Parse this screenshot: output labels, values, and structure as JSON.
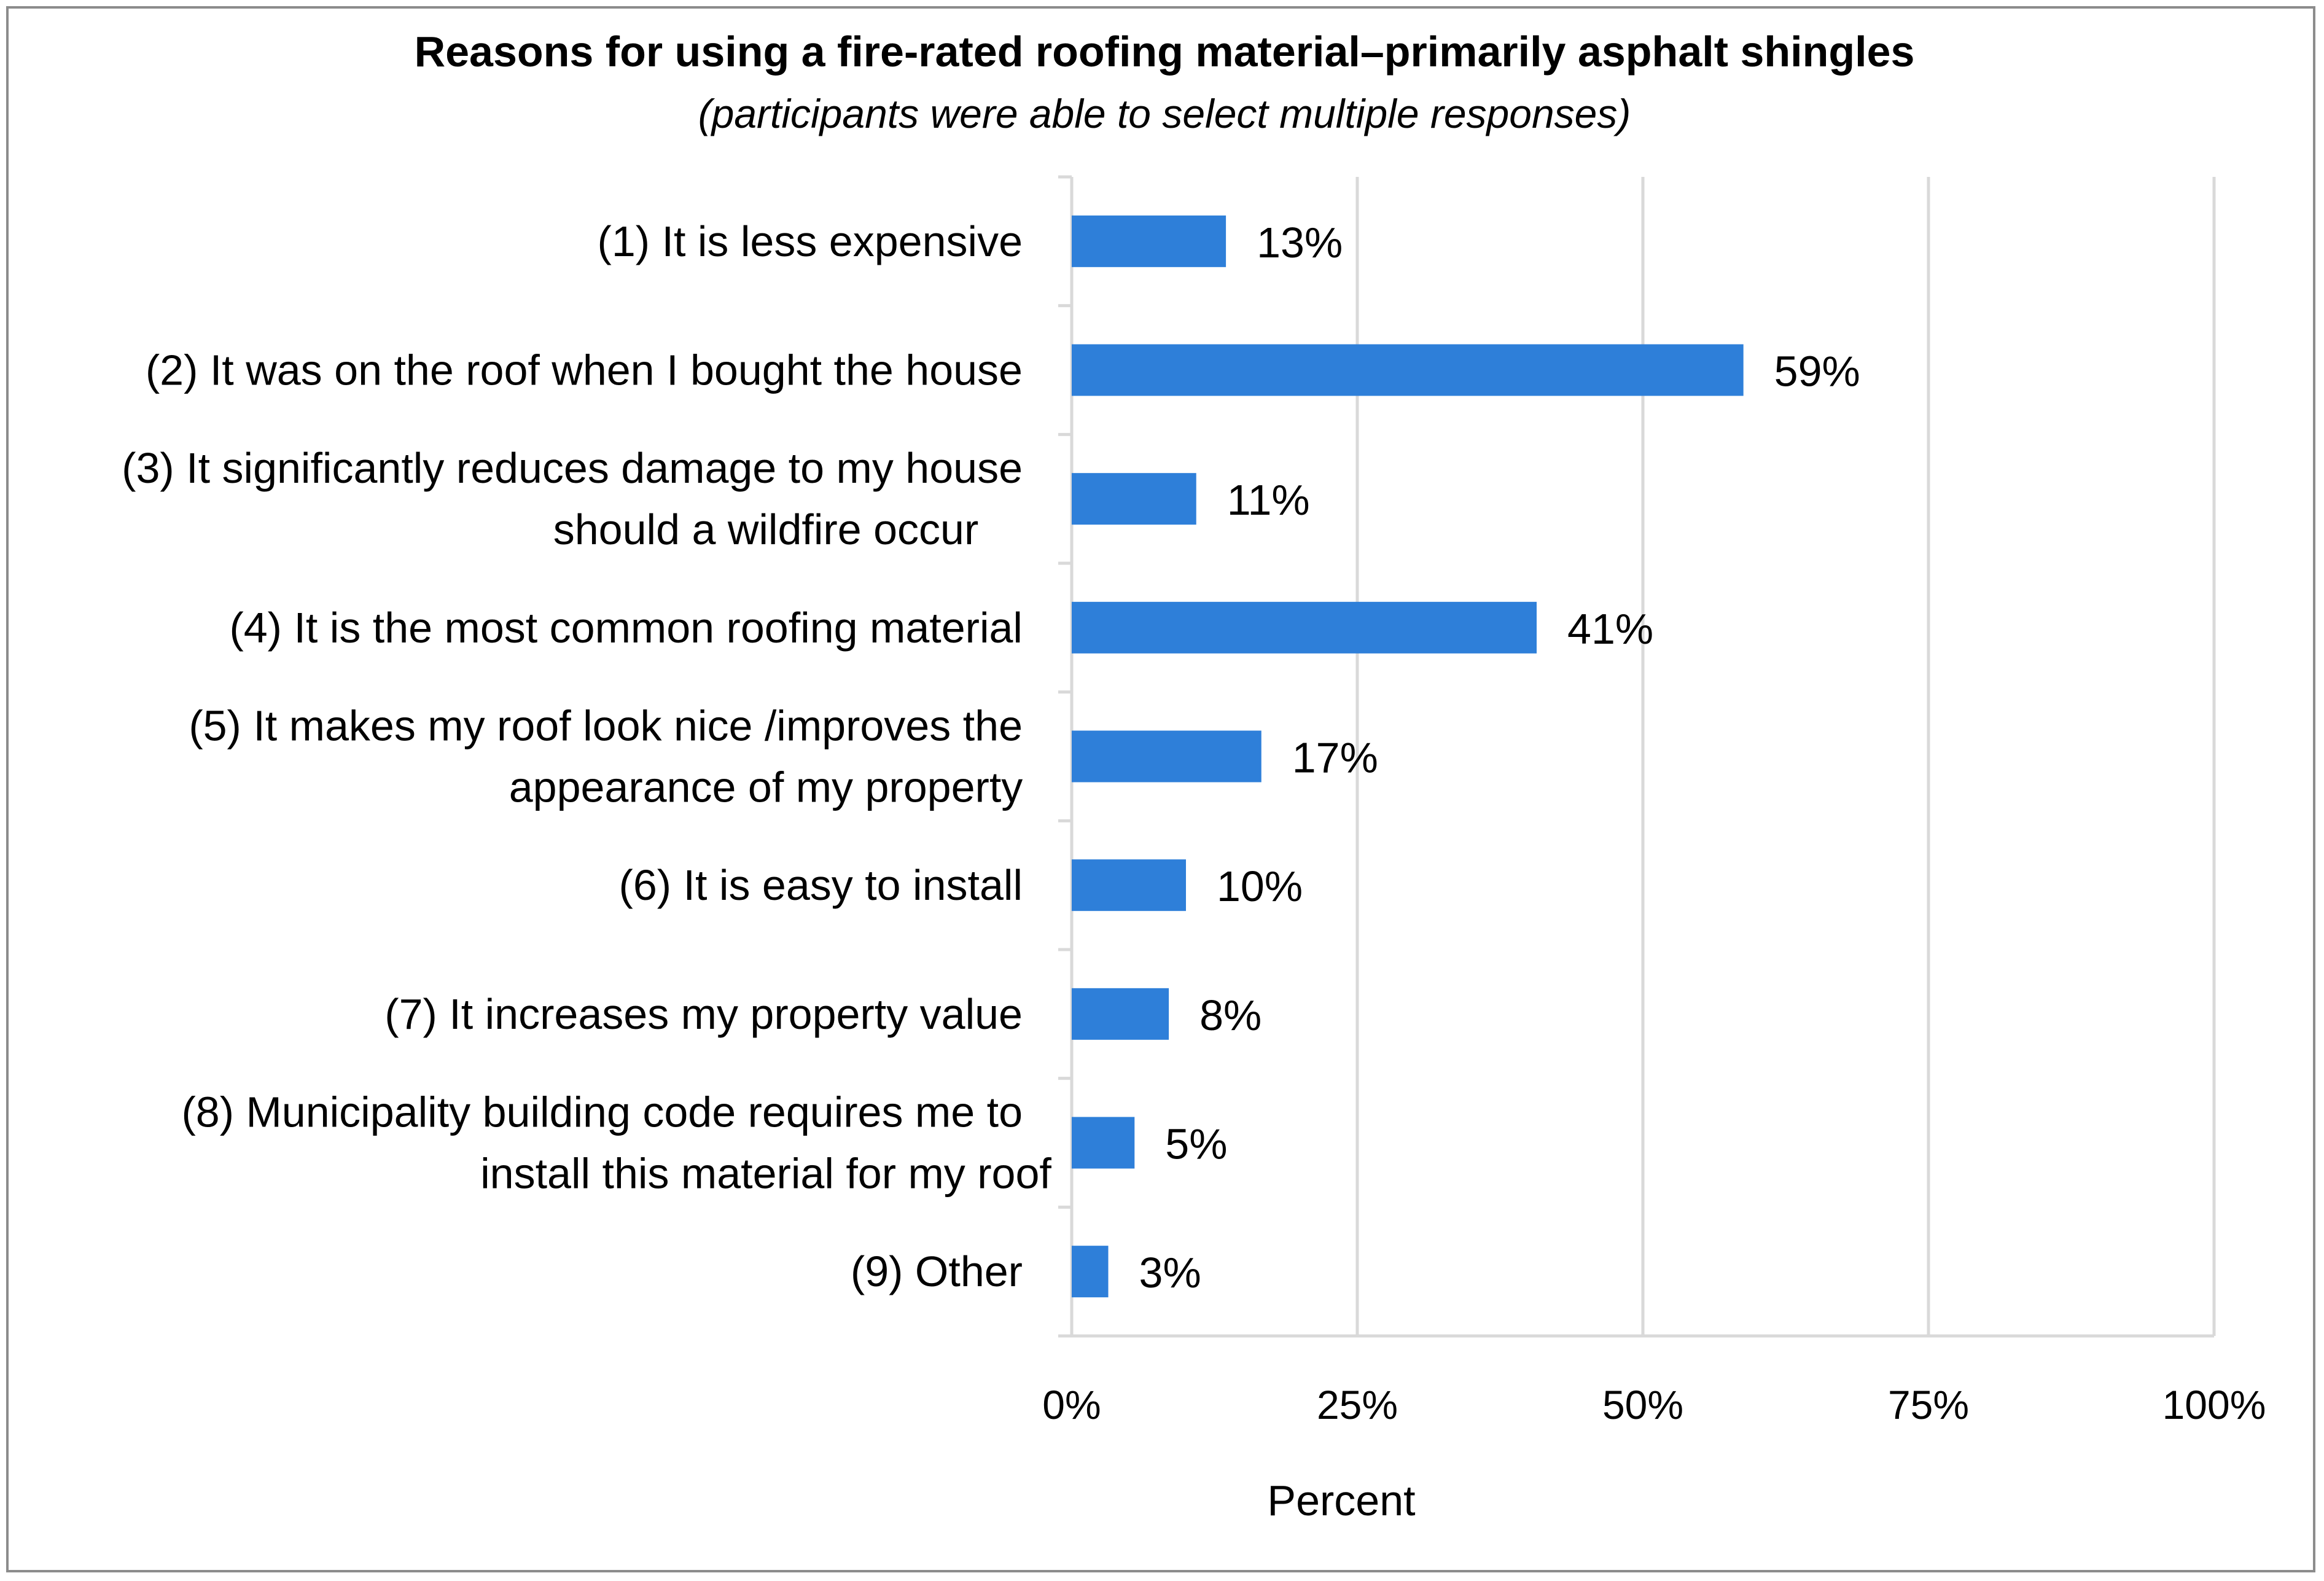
{
  "chart_data": {
    "type": "bar",
    "orientation": "horizontal",
    "title": "Reasons for using a fire-rated roofing material–primarily asphalt shingles",
    "subtitle": "(participants were able to select multiple responses)",
    "categories": [
      [
        "(1) It is less expensive"
      ],
      [
        "(2) It was on the roof when I bought the house"
      ],
      [
        "(3) It significantly reduces damage to my house",
        "should a wildfire occur"
      ],
      [
        "(4) It is the most common roofing material"
      ],
      [
        "(5) It makes my roof look nice /improves the",
        "appearance of my property"
      ],
      [
        "(6) It is easy to install"
      ],
      [
        "(7) It increases my property value"
      ],
      [
        "(8) Municipality building code requires me to",
        "install this material for my roof"
      ],
      [
        "(9) Other"
      ]
    ],
    "values": [
      13.5,
      58.8,
      10.9,
      40.7,
      16.6,
      10.0,
      8.5,
      5.5,
      3.2
    ],
    "data_labels": [
      "13%",
      "59%",
      "11%",
      "41%",
      "17%",
      "10%",
      "8%",
      "5%",
      "3%"
    ],
    "xlabel": "Percent",
    "ylabel": "",
    "xlim": [
      0,
      100
    ],
    "ticks": [
      0,
      25,
      50,
      75,
      100
    ],
    "tick_labels": [
      "0%",
      "25%",
      "50%",
      "75%",
      "100%"
    ],
    "grid": true,
    "bar_color": "#2e7fd9",
    "grid_color": "#d9d9d9",
    "legend": "none"
  }
}
